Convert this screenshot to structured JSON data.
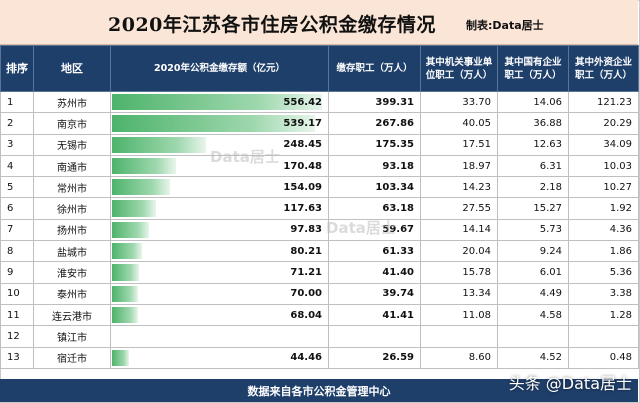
{
  "title": "2020年江苏各市住房公积金缴存情况",
  "maker": "制表:Data居士",
  "headers": {
    "rank": "排序",
    "region": "地区",
    "amount": "2020年公积金缴存额（亿元）",
    "employees": "缴存职工（万人）",
    "gov": "其中机关事业单位职工（万人）",
    "soe": "其中国有企业职工（万人）",
    "foreign": "其中外资企业职工（万人）"
  },
  "max_amount": 556.42,
  "rows": [
    {
      "rank": "1",
      "region": "苏州市",
      "amount": "556.42",
      "employees": "399.31",
      "gov": "33.70",
      "soe": "14.06",
      "foreign": "121.23"
    },
    {
      "rank": "2",
      "region": "南京市",
      "amount": "539.17",
      "employees": "267.86",
      "gov": "40.05",
      "soe": "36.88",
      "foreign": "20.29"
    },
    {
      "rank": "3",
      "region": "无锡市",
      "amount": "248.45",
      "employees": "175.35",
      "gov": "17.51",
      "soe": "12.63",
      "foreign": "34.09"
    },
    {
      "rank": "4",
      "region": "南通市",
      "amount": "170.48",
      "employees": "93.18",
      "gov": "18.97",
      "soe": "6.31",
      "foreign": "10.03"
    },
    {
      "rank": "5",
      "region": "常州市",
      "amount": "154.09",
      "employees": "103.34",
      "gov": "14.23",
      "soe": "2.18",
      "foreign": "10.27"
    },
    {
      "rank": "6",
      "region": "徐州市",
      "amount": "117.63",
      "employees": "63.18",
      "gov": "27.55",
      "soe": "15.27",
      "foreign": "1.92"
    },
    {
      "rank": "7",
      "region": "扬州市",
      "amount": "97.83",
      "employees": "59.67",
      "gov": "14.14",
      "soe": "5.73",
      "foreign": "4.36"
    },
    {
      "rank": "8",
      "region": "盐城市",
      "amount": "80.21",
      "employees": "61.33",
      "gov": "20.04",
      "soe": "9.24",
      "foreign": "1.86"
    },
    {
      "rank": "9",
      "region": "淮安市",
      "amount": "71.21",
      "employees": "41.40",
      "gov": "15.78",
      "soe": "6.01",
      "foreign": "5.36"
    },
    {
      "rank": "10",
      "region": "泰州市",
      "amount": "70.00",
      "employees": "39.74",
      "gov": "13.34",
      "soe": "4.49",
      "foreign": "3.38"
    },
    {
      "rank": "11",
      "region": "连云港市",
      "amount": "68.04",
      "employees": "41.41",
      "gov": "11.08",
      "soe": "4.58",
      "foreign": "1.28"
    },
    {
      "rank": "12",
      "region": "镇江市",
      "amount": "",
      "employees": "",
      "gov": "",
      "soe": "",
      "foreign": ""
    },
    {
      "rank": "13",
      "region": "宿迁市",
      "amount": "44.46",
      "employees": "26.59",
      "gov": "8.60",
      "soe": "4.52",
      "foreign": "0.48"
    }
  ],
  "footer": "数据来自各市公积金管理中心",
  "watermark": "Data居士",
  "credit": "头条 @Data居士",
  "colors": {
    "header_bg": "#1f3f6b",
    "title_bg": "#fbe5d6",
    "bar": "#4db36b"
  }
}
